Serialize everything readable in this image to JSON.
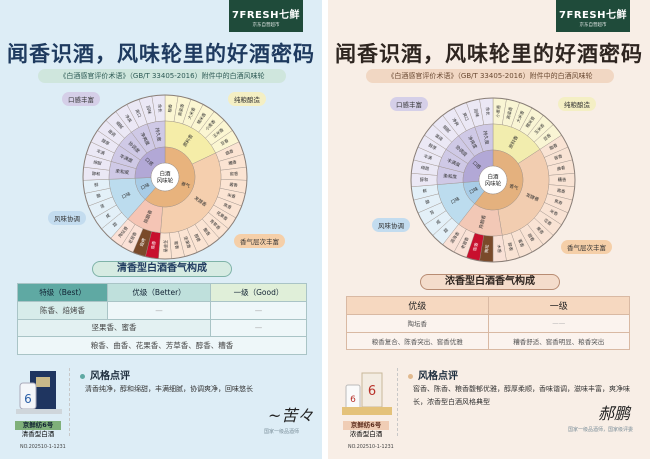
{
  "left": {
    "logo": {
      "brand": "7FRESH七鲜",
      "tagline": "京东自营超市"
    },
    "title": "闻香识酒，风味轮里的好酒密码",
    "subtitle": "《白酒感官评价术语》（GB/T 33405-2016）附件中的白酒风味轮",
    "tags": {
      "mouthfeel": "口感丰富",
      "grain": "纯粮酿造",
      "harmony": "风味协调",
      "aroma": "香气层次丰富"
    },
    "wheel": {
      "center": "白酒风味轮",
      "categories": [
        {
          "label": "香气",
          "color": "#e8b37d",
          "children": [
            {
              "label": "原料香",
              "color": "#f5eda8",
              "leaf": "#fbf6d2",
              "children": [
                "粮香",
                "高粱香",
                "大米香",
                "糯米香",
                "小麦香",
                "玉米香",
                "豆香"
              ]
            },
            {
              "label": "发酵香",
              "color": "#f5cfae",
              "leaf": "#fbe4d3",
              "children": [
                "曲香",
                "糟香",
                "窖香",
                "酱香",
                "米香",
                "焦香",
                "花果香",
                "青草香",
                "酯香",
                "醇香",
                "坚果香",
                "蜜香",
                "芳草香"
              ]
            },
            {
              "label": "陈酿香",
              "color": "#f5c5b5",
              "leaf": "#fbe1d6",
              "children": [
                "陈香",
                "焙烤",
                "老窖香",
                "陶坛香"
              ],
              "highlight": {
                "焙烤": "#7a4a2a",
                "陈香": "#c8102e"
              }
            }
          ]
        },
        {
          "label": "口味",
          "color": "#a8cce6",
          "children": [
            {
              "label": "口味",
              "color": "#bcdcee",
              "leaf": "#e3f0f8",
              "children": [
                "甜",
                "咸",
                "苦",
                "酸",
                "鲜"
              ]
            }
          ]
        },
        {
          "label": "口感",
          "color": "#b2a8d6",
          "children": [
            {
              "label": "柔和度",
              "color": "#cfc9e6",
              "leaf": "#ebe8f5",
              "children": [
                "醇和",
                "绵甜"
              ]
            },
            {
              "label": "丰满度",
              "color": "#cfc9e6",
              "leaf": "#ebe8f5",
              "children": [
                "丰满",
                "醇厚"
              ]
            },
            {
              "label": "协调度",
              "color": "#cfc9e6",
              "leaf": "#ebe8f5",
              "children": [
                "谐调",
                "细腻"
              ]
            },
            {
              "label": "净爽度",
              "color": "#cfc9e6",
              "leaf": "#ebe8f5",
              "children": [
                "净爽",
                "爽口"
              ]
            },
            {
              "label": "持久度",
              "color": "#cfc9e6",
              "leaf": "#ebe8f5",
              "children": [
                "回味",
                "余长"
              ]
            }
          ]
        }
      ]
    },
    "section_title": "清香型白酒香气构成",
    "table": {
      "headers": [
        "特级（Best）",
        "优级（Better）",
        "一级（Good）"
      ],
      "row1": "陈香、焙烤香",
      "row2": "坚果香、蜜香",
      "row3": "粮香、曲香、花果香、芳草香、醇香、糟香",
      "dash": "—"
    },
    "product": {
      "name": "京鲜纺6号",
      "type": "清香型白酒"
    },
    "review": {
      "heading": "风格点评",
      "text": "清香纯净，醇和绵甜，丰满细腻，协调爽净，回味悠长"
    },
    "signature_caption": "国家一级品酒师",
    "serial": "NO.202510-1-1231",
    "colors": {
      "bg": "#ddedf6",
      "title": "#1e3a5f",
      "accent": "#3f9a94"
    }
  },
  "right": {
    "logo": {
      "brand": "7FRESH七鲜",
      "tagline": "京东自营超市"
    },
    "title": "闻香识酒，风味轮里的好酒密码",
    "subtitle": "《白酒感官评价术语》（GB/T 33405-2016）附件中的白酒风味轮",
    "tags": {
      "mouthfeel": "口感丰富",
      "grain": "纯粮酿造",
      "harmony": "风味协调",
      "aroma": "香气层次丰富"
    },
    "wheel": {
      "center": "白酒风味轮",
      "categories": [
        {
          "label": "香气",
          "color": "#e4b17e",
          "children": [
            {
              "label": "原料香",
              "color": "#f2edae",
              "leaf": "#f9f5d4",
              "children": [
                "小麦香",
                "高粱香",
                "大米香",
                "糯米香",
                "玉米香",
                "豆香"
              ]
            },
            {
              "label": "发酵香",
              "color": "#f2cdb0",
              "leaf": "#f9e3d4",
              "children": [
                "酯香",
                "窖香",
                "曲香",
                "糟香",
                "酱香",
                "焦香",
                "米香",
                "花香",
                "果香",
                "甜香",
                "蜜香",
                "醇香"
              ]
            },
            {
              "label": "陈酿香",
              "color": "#f2c8b6",
              "leaf": "#f9e1d6",
              "children": [
                "木香",
                "陶坛",
                "陈香",
                "老窖香",
                "酒海香"
              ],
              "highlight": {
                "陶坛": "#7a4a2a",
                "陈香": "#c8102e"
              }
            }
          ]
        },
        {
          "label": "口味",
          "color": "#a8cce6",
          "children": [
            {
              "label": "口味",
              "color": "#bcdcee",
              "leaf": "#e3f0f8",
              "children": [
                "甜",
                "咸",
                "苦",
                "酸",
                "鲜"
              ]
            }
          ]
        },
        {
          "label": "口感",
          "color": "#b2a8d6",
          "children": [
            {
              "label": "柔和度",
              "color": "#cfc9e6",
              "leaf": "#ebe8f5",
              "children": [
                "醇和",
                "绵甜"
              ]
            },
            {
              "label": "丰满度",
              "color": "#cfc9e6",
              "leaf": "#ebe8f5",
              "children": [
                "丰满",
                "醇厚"
              ]
            },
            {
              "label": "协调度",
              "color": "#cfc9e6",
              "leaf": "#ebe8f5",
              "children": [
                "谐调",
                "细腻"
              ]
            },
            {
              "label": "净爽度",
              "color": "#cfc9e6",
              "leaf": "#ebe8f5",
              "children": [
                "净爽",
                "爽口"
              ]
            },
            {
              "label": "持久度",
              "color": "#cfc9e6",
              "leaf": "#ebe8f5",
              "children": [
                "回味",
                "余长"
              ]
            }
          ]
        }
      ]
    },
    "section_title": "浓香型白酒香气构成",
    "table": {
      "headers": [
        "优级",
        "一级"
      ],
      "row1": [
        "陶坛香",
        "——"
      ],
      "row2": [
        "粮香复合、陈香突出、窖香优雅",
        "糟香舒适、窖香明显、粮香突出"
      ]
    },
    "product": {
      "name": "京鲜纺6号",
      "type": "浓香型白酒"
    },
    "review": {
      "heading": "风格点评",
      "text": "窖香、陈香、粮香馥郁优雅，醇厚柔顺，香味谐调，滋味丰富，爽净味长，浓香型白酒风格典型"
    },
    "signature_caption": "国家一级品酒师，国家级评委",
    "serial": "NO.202510-1-1231",
    "colors": {
      "bg": "#f8eee6",
      "title": "#2e2520",
      "accent": "#e1b98e"
    }
  }
}
